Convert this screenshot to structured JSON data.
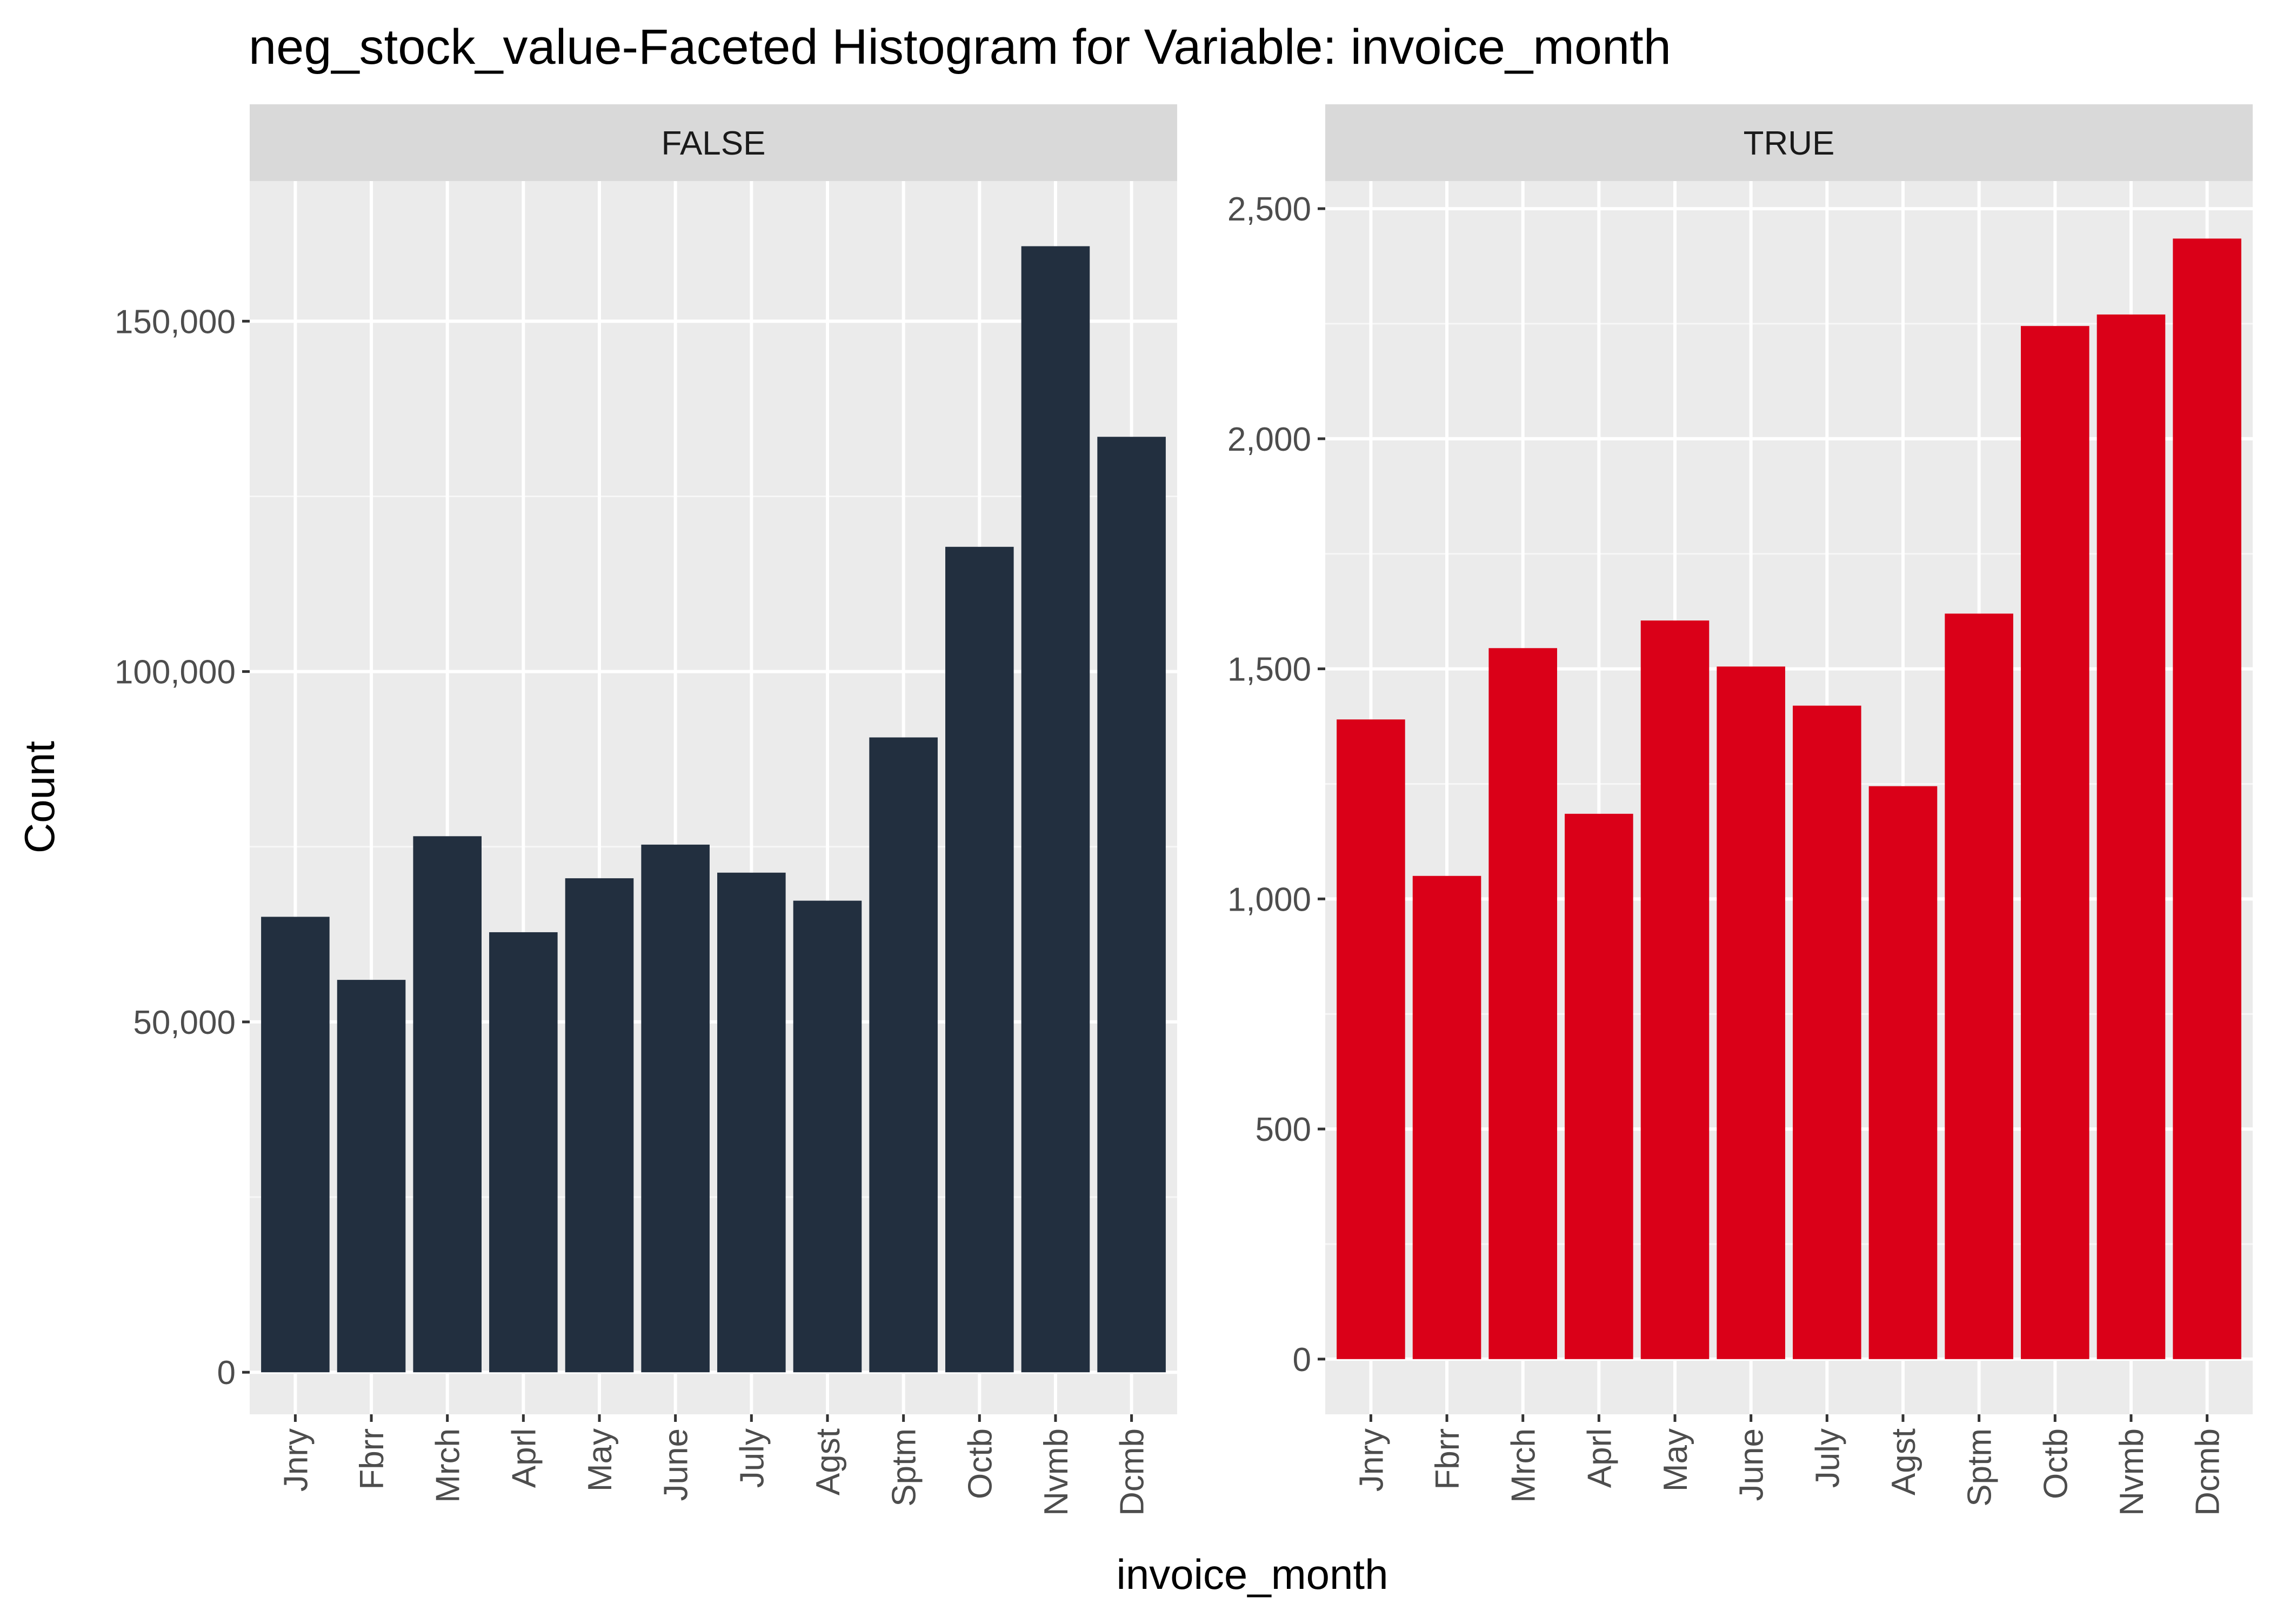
{
  "chart_data": {
    "type": "bar",
    "title": "neg_stock_value-Faceted Histogram for Variable: invoice_month",
    "xlabel": "invoice_month",
    "ylabel": "Count",
    "categories": [
      "Jnry",
      "Fbrr",
      "Mrch",
      "Aprl",
      "May",
      "June",
      "July",
      "Agst",
      "Sptm",
      "Octb",
      "Nvmb",
      "Dcmb"
    ],
    "grid": true,
    "facets": [
      {
        "label": "FALSE",
        "color": "#222F3F",
        "ylim": [
          -6000,
          170000
        ],
        "yticks": [
          0,
          50000,
          100000,
          150000
        ],
        "ytick_labels": [
          "0",
          "50,000",
          "100,000",
          "150,000"
        ],
        "values": [
          65000,
          56000,
          76500,
          62800,
          70500,
          75300,
          71300,
          67300,
          90600,
          117800,
          160700,
          133500
        ]
      },
      {
        "label": "TRUE",
        "color": "#DA0018",
        "ylim": [
          -120,
          2560
        ],
        "yticks": [
          0,
          500,
          1000,
          1500,
          2000,
          2500
        ],
        "ytick_labels": [
          "0",
          "500",
          "1,000",
          "1,500",
          "2,000",
          "2,500"
        ],
        "values": [
          1390,
          1050,
          1545,
          1185,
          1605,
          1505,
          1420,
          1245,
          1620,
          2245,
          2270,
          2435
        ]
      }
    ]
  }
}
